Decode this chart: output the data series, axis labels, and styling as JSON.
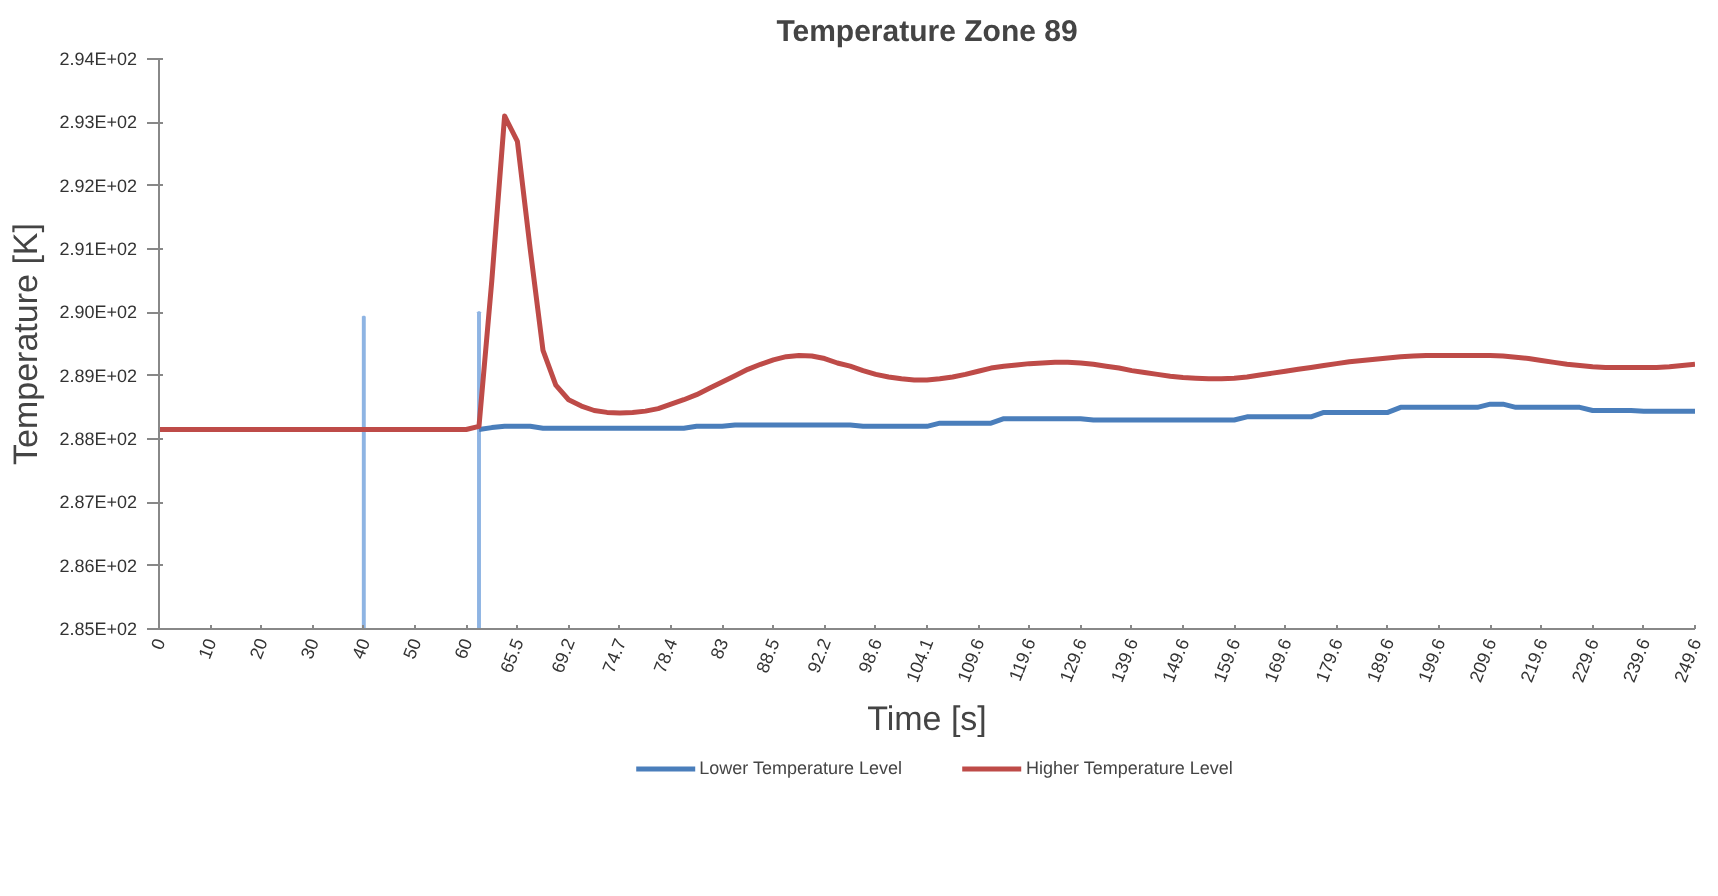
{
  "chart_data": {
    "type": "line",
    "title": "Temperature Zone 89",
    "xlabel": "Time [s]",
    "ylabel": "Temperature [K]",
    "categories": [
      "0",
      null,
      null,
      null,
      "10",
      null,
      null,
      null,
      "20",
      null,
      null,
      null,
      "30",
      null,
      null,
      null,
      "40",
      null,
      null,
      null,
      "50",
      null,
      null,
      null,
      "60",
      null,
      null,
      null,
      "65.5",
      null,
      null,
      null,
      "69.2",
      null,
      null,
      null,
      "74.7",
      null,
      null,
      null,
      "78.4",
      null,
      null,
      null,
      "83",
      null,
      null,
      null,
      "88.5",
      null,
      null,
      null,
      "92.2",
      null,
      null,
      null,
      "98.6",
      null,
      null,
      null,
      "104.1",
      null,
      null,
      null,
      "109.6",
      null,
      null,
      null,
      "119.6",
      null,
      null,
      null,
      "129.6",
      null,
      null,
      null,
      "139.6",
      null,
      null,
      null,
      "149.6",
      null,
      null,
      null,
      "159.6",
      null,
      null,
      null,
      "169.6",
      null,
      null,
      null,
      "179.6",
      null,
      null,
      null,
      "189.6",
      null,
      null,
      null,
      "199.6",
      null,
      null,
      null,
      "209.6",
      null,
      null,
      null,
      "219.6",
      null,
      null,
      null,
      "229.6",
      null,
      null,
      null,
      "239.6",
      null,
      null,
      null,
      "249.6"
    ],
    "series": [
      {
        "type": "bar",
        "color": "#8eb4e3",
        "values": [
          null,
          null,
          null,
          null,
          null,
          null,
          null,
          null,
          null,
          null,
          null,
          null,
          null,
          null,
          null,
          null,
          289.93,
          null,
          null,
          null,
          null,
          null,
          null,
          null,
          null,
          290.0,
          null,
          null,
          null,
          null,
          null,
          null,
          null,
          null,
          null,
          null,
          null,
          null,
          null,
          null,
          null,
          null,
          null,
          null,
          null,
          null,
          null,
          null,
          null,
          null,
          null,
          null,
          null,
          null,
          null,
          null,
          null,
          null,
          null,
          null,
          null,
          null,
          null,
          null,
          null,
          null,
          null,
          null,
          null,
          null,
          null,
          null,
          null,
          null,
          null,
          null,
          null,
          null,
          null,
          null,
          null,
          null,
          null,
          null,
          null,
          null,
          null,
          null,
          null,
          null,
          null,
          null,
          null,
          null,
          null,
          null,
          null,
          null,
          null,
          null,
          null,
          null,
          null,
          null,
          null,
          null,
          null,
          null,
          null,
          null,
          null,
          null,
          null,
          null,
          null,
          null,
          null,
          null,
          null,
          null,
          null
        ]
      },
      {
        "name": "Lower Temperature Level",
        "color": "#4a7ebb",
        "values": [
          null,
          null,
          null,
          null,
          null,
          null,
          null,
          null,
          null,
          null,
          null,
          null,
          null,
          null,
          null,
          null,
          null,
          null,
          null,
          null,
          null,
          null,
          null,
          null,
          null,
          288.15,
          288.18,
          288.2,
          288.2,
          288.2,
          288.17,
          288.17,
          288.17,
          288.17,
          288.17,
          288.17,
          288.17,
          288.17,
          288.17,
          288.17,
          288.17,
          288.17,
          288.2,
          288.2,
          288.2,
          288.22,
          288.22,
          288.22,
          288.22,
          288.22,
          288.22,
          288.22,
          288.22,
          288.22,
          288.22,
          288.2,
          288.2,
          288.2,
          288.2,
          288.2,
          288.2,
          288.25,
          288.25,
          288.25,
          288.25,
          288.25,
          288.32,
          288.32,
          288.32,
          288.32,
          288.32,
          288.32,
          288.32,
          288.3,
          288.3,
          288.3,
          288.3,
          288.3,
          288.3,
          288.3,
          288.3,
          288.3,
          288.3,
          288.3,
          288.3,
          288.35,
          288.35,
          288.35,
          288.35,
          288.35,
          288.35,
          288.42,
          288.42,
          288.42,
          288.42,
          288.42,
          288.42,
          288.5,
          288.5,
          288.5,
          288.5,
          288.5,
          288.5,
          288.5,
          288.55,
          288.55,
          288.5,
          288.5,
          288.5,
          288.5,
          288.5,
          288.5,
          288.45,
          288.45,
          288.45,
          288.45,
          288.44,
          288.44,
          288.44,
          288.44,
          288.44
        ]
      },
      {
        "name": "Higher Temperature Level",
        "color": "#be4b48",
        "values": [
          288.15,
          288.15,
          288.15,
          288.15,
          288.15,
          288.15,
          288.15,
          288.15,
          288.15,
          288.15,
          288.15,
          288.15,
          288.15,
          288.15,
          288.15,
          288.15,
          288.15,
          288.15,
          288.15,
          288.15,
          288.15,
          288.15,
          288.15,
          288.15,
          288.15,
          288.2,
          290.5,
          293.1,
          292.7,
          291.0,
          289.4,
          288.85,
          288.62,
          288.52,
          288.45,
          288.42,
          288.41,
          288.42,
          288.44,
          288.48,
          288.55,
          288.62,
          288.7,
          288.8,
          288.9,
          289.0,
          289.1,
          289.18,
          289.25,
          289.3,
          289.32,
          289.31,
          289.27,
          289.2,
          289.15,
          289.08,
          289.02,
          288.98,
          288.95,
          288.93,
          288.93,
          288.95,
          288.98,
          289.02,
          289.07,
          289.12,
          289.15,
          289.17,
          289.19,
          289.2,
          289.21,
          289.21,
          289.2,
          289.18,
          289.15,
          289.12,
          289.08,
          289.05,
          289.02,
          288.99,
          288.97,
          288.96,
          288.95,
          288.95,
          288.96,
          288.98,
          289.01,
          289.04,
          289.07,
          289.1,
          289.13,
          289.16,
          289.19,
          289.22,
          289.24,
          289.26,
          289.28,
          289.3,
          289.31,
          289.32,
          289.32,
          289.32,
          289.32,
          289.32,
          289.32,
          289.31,
          289.29,
          289.27,
          289.24,
          289.21,
          289.18,
          289.16,
          289.14,
          289.13,
          289.13,
          289.13,
          289.13,
          289.13,
          289.14,
          289.16,
          289.18
        ]
      }
    ],
    "ylim": [
      285,
      294
    ],
    "yticks": [
      {
        "value": 285,
        "label": "2.85E+02"
      },
      {
        "value": 286,
        "label": "2.86E+02"
      },
      {
        "value": 287,
        "label": "2.87E+02"
      },
      {
        "value": 288,
        "label": "2.88E+02"
      },
      {
        "value": 289,
        "label": "2.89E+02"
      },
      {
        "value": 290,
        "label": "2.90E+02"
      },
      {
        "value": 291,
        "label": "2.91E+02"
      },
      {
        "value": 292,
        "label": "2.92E+02"
      },
      {
        "value": 293,
        "label": "2.93E+02"
      },
      {
        "value": 294,
        "label": "2.94E+02"
      }
    ],
    "grid": false,
    "legend": "bottom",
    "marker": "none",
    "line_style": "solid"
  }
}
